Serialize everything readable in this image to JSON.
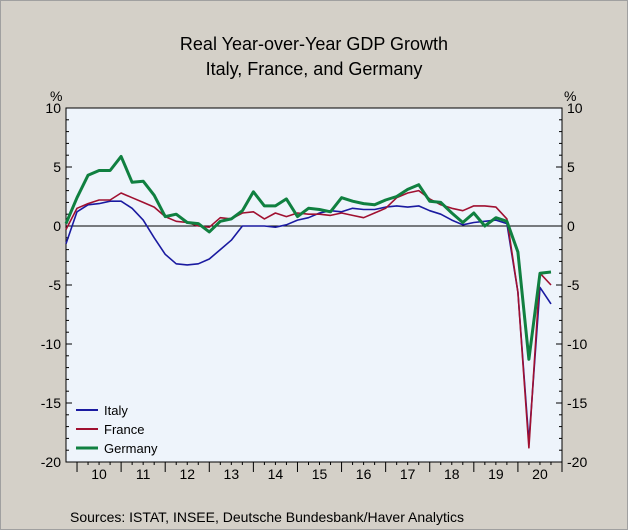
{
  "chart_data": {
    "type": "line",
    "title": [
      "Real Year-over-Year GDP Growth",
      "Italy, France, and Germany"
    ],
    "ylabel_left": "%",
    "ylabel_right": "%",
    "ylim": [
      -20,
      10
    ],
    "yticks": [
      10,
      5,
      0,
      -5,
      -10,
      -15,
      -20
    ],
    "xlim": [
      2009.75,
      2021.0
    ],
    "xticks": [
      "10",
      "11",
      "12",
      "13",
      "14",
      "15",
      "16",
      "17",
      "18",
      "19",
      "20"
    ],
    "zero_line": true,
    "grid": false,
    "legend_position": "bottom-left",
    "source": "Sources:    ISTAT, INSEE, Deutsche Bundesbank/Haver Analytics",
    "x": [
      2009.75,
      2010.0,
      2010.25,
      2010.5,
      2010.75,
      2011.0,
      2011.25,
      2011.5,
      2011.75,
      2012.0,
      2012.25,
      2012.5,
      2012.75,
      2013.0,
      2013.25,
      2013.5,
      2013.75,
      2014.0,
      2014.25,
      2014.5,
      2014.75,
      2015.0,
      2015.25,
      2015.5,
      2015.75,
      2016.0,
      2016.25,
      2016.5,
      2016.75,
      2017.0,
      2017.25,
      2017.5,
      2017.75,
      2018.0,
      2018.25,
      2018.5,
      2018.75,
      2019.0,
      2019.25,
      2019.5,
      2019.75,
      2020.0,
      2020.25,
      2020.5,
      2020.75
    ],
    "series": [
      {
        "name": "Italy",
        "color": "#1a1aa0",
        "values": [
          -1.5,
          1.2,
          1.8,
          1.9,
          2.1,
          2.1,
          1.5,
          0.5,
          -1.0,
          -2.4,
          -3.2,
          -3.3,
          -3.2,
          -2.8,
          -2.0,
          -1.2,
          0.0,
          0.0,
          0.0,
          -0.1,
          0.1,
          0.5,
          0.7,
          1.1,
          1.3,
          1.2,
          1.5,
          1.4,
          1.4,
          1.6,
          1.7,
          1.6,
          1.7,
          1.3,
          1.0,
          0.5,
          0.1,
          0.3,
          0.4,
          0.5,
          0.2,
          -5.6,
          -18.3,
          -5.2,
          -6.6
        ]
      },
      {
        "name": "France",
        "color": "#a01030",
        "values": [
          -0.3,
          1.5,
          1.9,
          2.2,
          2.2,
          2.8,
          2.4,
          2.0,
          1.6,
          0.8,
          0.4,
          0.3,
          0.0,
          -0.1,
          0.7,
          0.6,
          1.1,
          1.2,
          0.6,
          1.1,
          0.8,
          1.1,
          1.0,
          1.0,
          0.9,
          1.1,
          0.9,
          0.7,
          1.1,
          1.5,
          2.4,
          2.8,
          3.0,
          2.3,
          1.8,
          1.5,
          1.3,
          1.7,
          1.7,
          1.6,
          0.6,
          -5.6,
          -18.8,
          -4.0,
          -5.0
        ]
      },
      {
        "name": "Germany",
        "color": "#108040",
        "values": [
          0.2,
          2.4,
          4.3,
          4.7,
          4.7,
          5.9,
          3.7,
          3.8,
          2.6,
          0.8,
          1.0,
          0.3,
          0.2,
          -0.5,
          0.4,
          0.6,
          1.3,
          2.9,
          1.7,
          1.7,
          2.3,
          0.8,
          1.5,
          1.4,
          1.2,
          2.4,
          2.1,
          1.9,
          1.8,
          2.2,
          2.5,
          3.1,
          3.5,
          2.1,
          2.0,
          1.1,
          0.3,
          1.1,
          0.0,
          0.7,
          0.4,
          -2.2,
          -11.3,
          -4.0,
          -3.9
        ]
      }
    ]
  }
}
